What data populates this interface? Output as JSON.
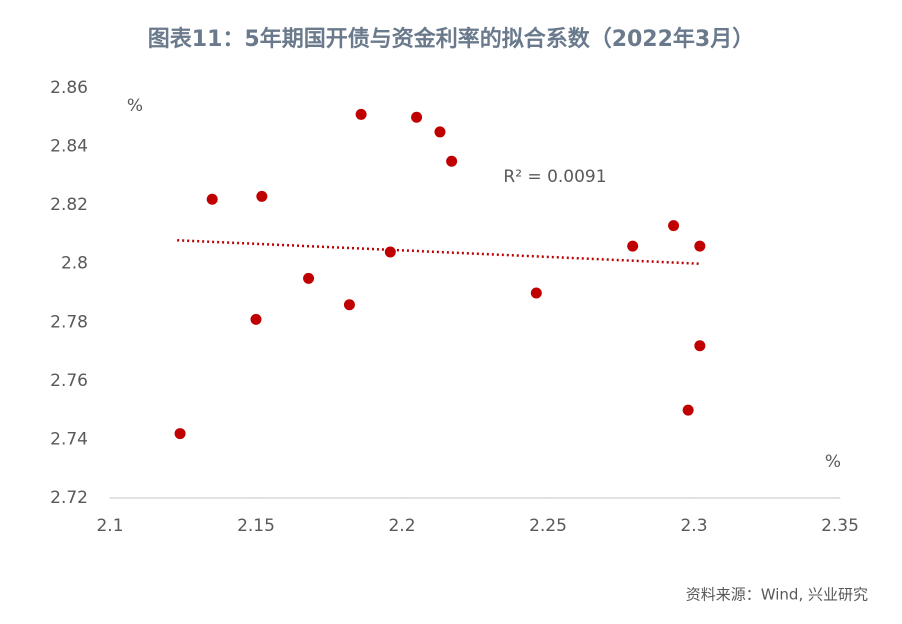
{
  "chart_data": {
    "type": "scatter",
    "title": "图表11：5年期国开债与资金利率的拟合系数（2022年3月）",
    "y_unit": "%",
    "x_unit": "%",
    "annotation": "R² = 0.0091",
    "source": "资料来源：Wind, 兴业研究",
    "color": "#c00000",
    "x": [
      2.124,
      2.135,
      2.152,
      2.15,
      2.168,
      2.182,
      2.186,
      2.196,
      2.205,
      2.213,
      2.217,
      2.246,
      2.279,
      2.293,
      2.302,
      2.302,
      2.298
    ],
    "values": [
      2.742,
      2.822,
      2.823,
      2.781,
      2.795,
      2.786,
      2.851,
      2.804,
      2.85,
      2.845,
      2.835,
      2.79,
      2.806,
      2.813,
      2.806,
      2.772,
      2.75
    ],
    "trendline": {
      "x": [
        2.123,
        2.302
      ],
      "y": [
        2.808,
        2.8
      ],
      "color": "#c00000"
    },
    "xlim": [
      2.1,
      2.35
    ],
    "xticks": [
      2.1,
      2.15,
      2.2,
      2.25,
      2.3,
      2.35
    ],
    "ylim": [
      2.72,
      2.86
    ],
    "yticks": [
      2.72,
      2.74,
      2.76,
      2.78,
      2.8,
      2.82,
      2.84,
      2.86
    ],
    "grid": false
  }
}
